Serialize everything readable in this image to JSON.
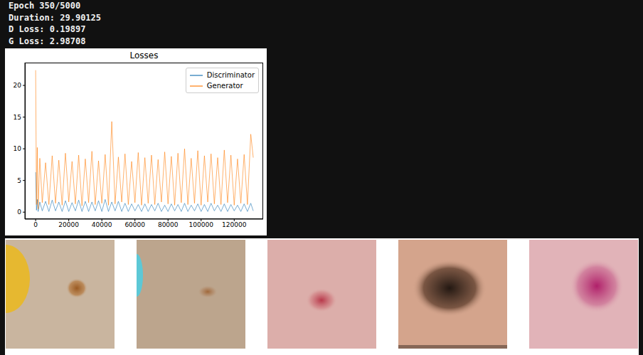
{
  "header": {
    "lines": [
      "Epoch 350/5000",
      "Duration: 29.90125",
      "D Loss: 0.19897",
      "G Loss: 2.98708"
    ]
  },
  "chart_data": {
    "type": "line",
    "title": "Losses",
    "x": [
      0,
      500,
      1000,
      1500,
      2500,
      4000,
      6000,
      8000,
      10000,
      12000,
      14000,
      16000,
      18000,
      20000,
      22000,
      24000,
      26000,
      28000,
      30000,
      32000,
      34000,
      36000,
      38000,
      40000,
      42000,
      44000,
      46000,
      48000,
      50000,
      52000,
      54000,
      56000,
      58000,
      60000,
      62000,
      64000,
      66000,
      68000,
      70000,
      72000,
      74000,
      76000,
      78000,
      80000,
      82000,
      84000,
      86000,
      88000,
      90000,
      92000,
      94000,
      96000,
      98000,
      100000,
      102000,
      104000,
      106000,
      108000,
      110000,
      112000,
      114000,
      116000,
      118000,
      120000,
      122000,
      124000,
      126000,
      128000,
      130000,
      131500
    ],
    "series": [
      {
        "name": "Discriminator",
        "color": "#1f77b4",
        "values": [
          6.3,
          0.3,
          2.0,
          0.1,
          1.6,
          0.2,
          1.7,
          0.1,
          1.9,
          0.2,
          1.6,
          0.1,
          1.8,
          0.1,
          1.5,
          0.2,
          1.9,
          0.1,
          1.7,
          0.1,
          1.6,
          0.2,
          1.8,
          0.1,
          2.0,
          0.1,
          1.6,
          0.2,
          1.7,
          0.1,
          1.4,
          0.1,
          1.3,
          0.2,
          1.2,
          0.1,
          1.3,
          0.1,
          1.2,
          0.2,
          1.4,
          0.1,
          1.1,
          0.1,
          1.3,
          0.2,
          1.2,
          0.1,
          1.4,
          0.1,
          1.1,
          0.2,
          1.3,
          0.1,
          1.2,
          0.1,
          1.4,
          0.2,
          1.1,
          0.1,
          1.3,
          0.1,
          1.2,
          0.2,
          1.1,
          0.1,
          1.3,
          0.1,
          1.4,
          0.2
        ]
      },
      {
        "name": "Generator",
        "color": "#ff7f0e",
        "values": [
          22.4,
          1.2,
          10.2,
          0.5,
          8.5,
          1.5,
          7.8,
          1.2,
          8.9,
          1.4,
          8.2,
          1.1,
          9.3,
          1.6,
          8.0,
          1.3,
          9.0,
          1.0,
          8.4,
          1.5,
          9.6,
          1.2,
          8.1,
          1.4,
          9.1,
          1.1,
          14.3,
          1.3,
          8.7,
          1.6,
          9.2,
          1.2,
          8.0,
          1.5,
          9.4,
          1.1,
          8.6,
          1.4,
          9.0,
          1.2,
          8.3,
          1.6,
          9.5,
          1.3,
          8.8,
          1.1,
          9.3,
          1.5,
          10.0,
          1.2,
          8.5,
          1.4,
          9.7,
          1.1,
          8.9,
          1.6,
          9.2,
          1.3,
          8.6,
          1.2,
          9.8,
          1.5,
          9.0,
          1.1,
          8.4,
          1.4,
          9.1,
          1.2,
          12.3,
          8.6
        ]
      }
    ],
    "xlim": [
      -6500,
      137500
    ],
    "ylim": [
      -1.1,
      23.6
    ],
    "xticks": [
      0,
      20000,
      40000,
      60000,
      80000,
      100000,
      120000
    ],
    "yticks": [
      0,
      5,
      10,
      15,
      20
    ],
    "legend": "upper right",
    "grid": false
  }
}
